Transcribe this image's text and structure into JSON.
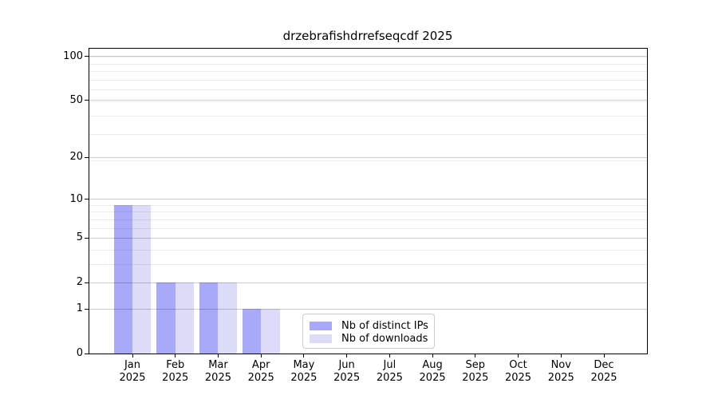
{
  "chart_data": {
    "type": "bar",
    "title": "drzebrafishdrrefseqcdf 2025",
    "categories": [
      "Jan 2025",
      "Feb 2025",
      "Mar 2025",
      "Apr 2025",
      "May 2025",
      "Jun 2025",
      "Jul 2025",
      "Aug 2025",
      "Sep 2025",
      "Oct 2025",
      "Nov 2025",
      "Dec 2025"
    ],
    "series": [
      {
        "name": "Nb of distinct IPs",
        "color": "#a9a9fa",
        "values": [
          9,
          2,
          2,
          1,
          0,
          0,
          0,
          0,
          0,
          0,
          0,
          0
        ]
      },
      {
        "name": "Nb of downloads",
        "color": "#dcdcf8",
        "values": [
          9,
          2,
          2,
          1,
          0,
          0,
          0,
          0,
          0,
          0,
          0,
          0
        ]
      }
    ],
    "xlabel": "",
    "ylabel": "",
    "yscale": "log1p",
    "ylim": [
      0,
      113
    ],
    "y_major_ticks": [
      100,
      50,
      20,
      10,
      5,
      2,
      1,
      0
    ],
    "y_minor_gridline_values": [
      3,
      4,
      6,
      7,
      8,
      9,
      19,
      29,
      39,
      49,
      59,
      69,
      79,
      89,
      99
    ],
    "grid": true,
    "legend_position": "lower center",
    "background_color": "#ffffff",
    "spine_color": "#000000"
  }
}
